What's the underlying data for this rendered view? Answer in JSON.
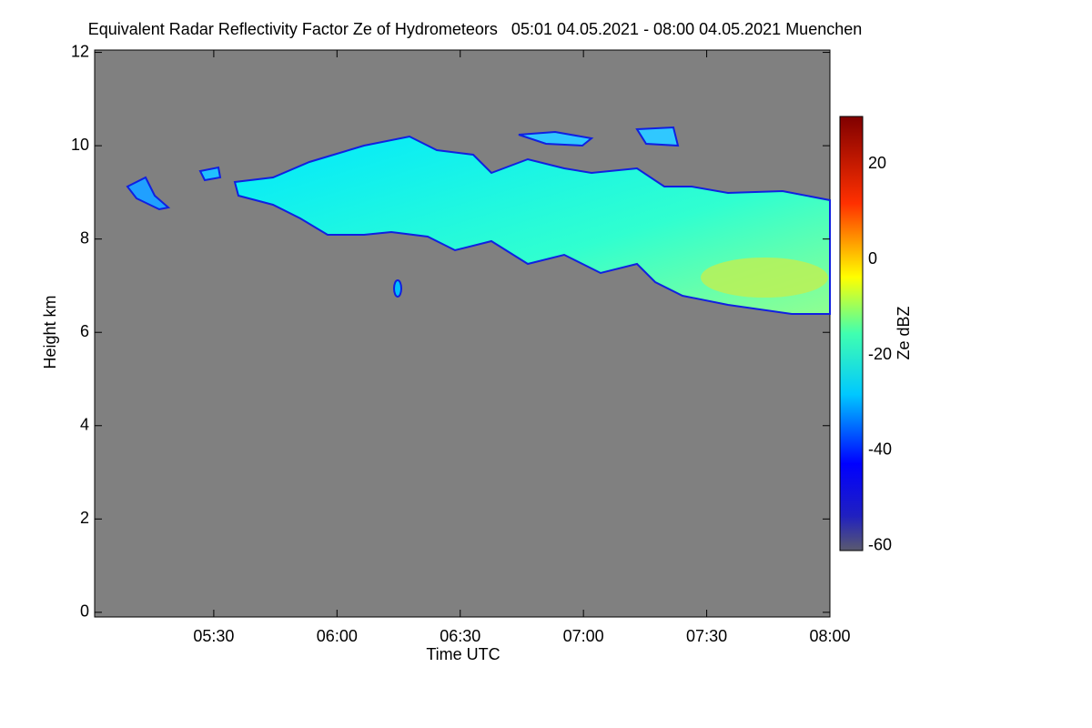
{
  "chart_data": {
    "type": "heatmap",
    "title": "Equivalent Radar Reflectivity Factor Ze of Hydrometeors   05:01 04.05.2021 - 08:00 04.05.2021 Muenchen",
    "x_label": "Time UTC",
    "y_label": "Height km",
    "colorbar_label": "Ze dBZ",
    "xlim": [
      301,
      480
    ],
    "xticks": [
      {
        "value": 330,
        "label": "05:30"
      },
      {
        "value": 360,
        "label": "06:00"
      },
      {
        "value": 390,
        "label": "06:30"
      },
      {
        "value": 420,
        "label": "07:00"
      },
      {
        "value": 450,
        "label": "07:30"
      },
      {
        "value": 480,
        "label": "08:00"
      }
    ],
    "ylim": [
      -0.1,
      12.05
    ],
    "yticks": [
      0,
      2,
      4,
      6,
      8,
      10,
      12
    ],
    "clim": [
      -61,
      30
    ],
    "cticks": [
      -60,
      -40,
      -20,
      0,
      20
    ]
  }
}
